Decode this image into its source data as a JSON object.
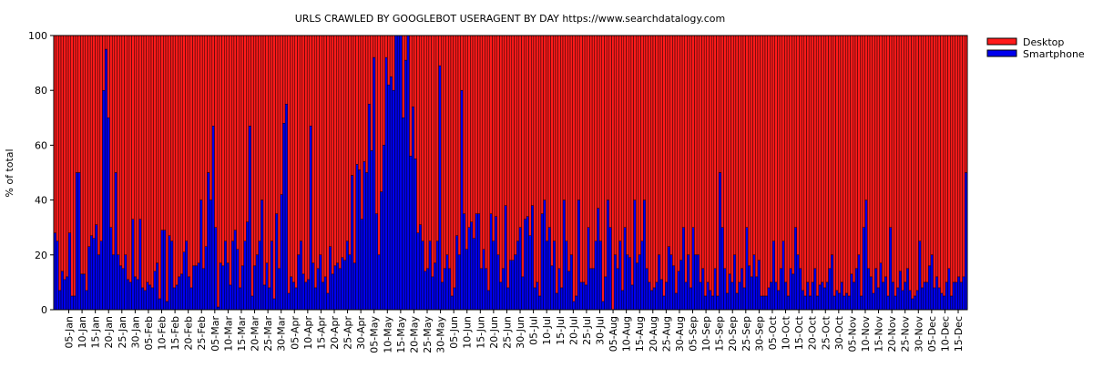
{
  "chart_data": {
    "type": "bar",
    "stacked": true,
    "title": "URLS CRAWLED BY GOOGLEBOT USERAGENT BY DAY https://www.searchdatalogy.com",
    "xlabel": "",
    "ylabel": "% of total",
    "ylim": [
      0,
      100
    ],
    "yticks": [
      0,
      20,
      40,
      60,
      80,
      100
    ],
    "grid": false,
    "legend_position": "top-right",
    "x_tick_labels": [
      "05-Jan",
      "10-Jan",
      "15-Jan",
      "20-Jan",
      "25-Jan",
      "30-Jan",
      "05-Feb",
      "10-Feb",
      "15-Feb",
      "20-Feb",
      "25-Feb",
      "05-Mar",
      "10-Mar",
      "15-Mar",
      "20-Mar",
      "25-Mar",
      "30-Mar",
      "05-Apr",
      "10-Apr",
      "15-Apr",
      "20-Apr",
      "25-Apr",
      "30-Apr",
      "05-May",
      "10-May",
      "15-May",
      "20-May",
      "25-May",
      "30-May",
      "05-Jun",
      "10-Jun",
      "15-Jun",
      "20-Jun",
      "25-Jun",
      "30-Jun",
      "05-Jul",
      "10-Jul",
      "15-Jul",
      "20-Jul",
      "25-Jul",
      "30-Jul",
      "05-Aug",
      "10-Aug",
      "15-Aug",
      "20-Aug",
      "25-Aug",
      "30-Aug",
      "05-Sep",
      "10-Sep",
      "15-Sep",
      "20-Sep",
      "25-Sep",
      "30-Sep",
      "05-Oct",
      "10-Oct",
      "15-Oct",
      "20-Oct",
      "25-Oct",
      "30-Oct",
      "05-Nov",
      "10-Nov",
      "15-Nov",
      "20-Nov",
      "25-Nov",
      "30-Nov",
      "05-Dec",
      "10-Dec",
      "15-Dec"
    ],
    "colors": {
      "Desktop": "#ff1a1a",
      "Smartphone": "#0000ee",
      "edge": "#000000"
    },
    "series": [
      {
        "name": "Desktop",
        "values": [
          72,
          75,
          93,
          86,
          89,
          88,
          72,
          95,
          95,
          50,
          50,
          87,
          87,
          93,
          77,
          73,
          74,
          69,
          80,
          75,
          20,
          5,
          30,
          70,
          80,
          50,
          80,
          84,
          85,
          80,
          89,
          90,
          67,
          88,
          89,
          67,
          92,
          93,
          90,
          91,
          92,
          86,
          83,
          96,
          71,
          71,
          97,
          73,
          75,
          92,
          91,
          88,
          87,
          79,
          75,
          88,
          92,
          84,
          84,
          83,
          60,
          85,
          77,
          50,
          60,
          33,
          70,
          99,
          83,
          84,
          75,
          83,
          91,
          75,
          71,
          78,
          92,
          84,
          75,
          68,
          33,
          95,
          84,
          80,
          75,
          60,
          91,
          83,
          92,
          75,
          96,
          65,
          85,
          58,
          32,
          25,
          94,
          88,
          90,
          92,
          80,
          75,
          87,
          90,
          89,
          33,
          83,
          92,
          85,
          80,
          90,
          88,
          94,
          77,
          87,
          84,
          83,
          85,
          81,
          82,
          75,
          80,
          51,
          83,
          47,
          49,
          67,
          46,
          50,
          25,
          42,
          8,
          65,
          80,
          57,
          40,
          8,
          18,
          15,
          20,
          0,
          0,
          0,
          30,
          9,
          0,
          44,
          26,
          45,
          72,
          69,
          75,
          86,
          85,
          75,
          88,
          83,
          75,
          11,
          90,
          85,
          80,
          85,
          95,
          92,
          73,
          80,
          20,
          65,
          78,
          70,
          68,
          74,
          65,
          65,
          85,
          78,
          85,
          93,
          65,
          75,
          66,
          80,
          90,
          85,
          62,
          92,
          82,
          82,
          80,
          75,
          70,
          88,
          67,
          66,
          73,
          62,
          92,
          90,
          95,
          65,
          60,
          75,
          70,
          84,
          75,
          94,
          85,
          92,
          60,
          75,
          86,
          80,
          97,
          95,
          60,
          90,
          90,
          91,
          70,
          85,
          85,
          75,
          63,
          75,
          97,
          88,
          60,
          70,
          100,
          80,
          85,
          75,
          93,
          70,
          80,
          81,
          91,
          60,
          83,
          80,
          75,
          60,
          85,
          90,
          93,
          92,
          90,
          80,
          89,
          95,
          90,
          77,
          80,
          84,
          94,
          86,
          82,
          70,
          90,
          80,
          92,
          70,
          80,
          80,
          90,
          85,
          95,
          90,
          93,
          95,
          85,
          95,
          50,
          70,
          85,
          94,
          87,
          90,
          80,
          94,
          90,
          85,
          92,
          70,
          84,
          88,
          80,
          88,
          82,
          95,
          95,
          95,
          92,
          90,
          75,
          90,
          93,
          85,
          75,
          90,
          95,
          85,
          87,
          70,
          80,
          85,
          93,
          95,
          90,
          95,
          90,
          85,
          95,
          91,
          90,
          92,
          90,
          85,
          80,
          95,
          93,
          94,
          90,
          95,
          94,
          95,
          87,
          90,
          85,
          80,
          95,
          70,
          60,
          85,
          88,
          94,
          85,
          92,
          83,
          90,
          88,
          95,
          70,
          90,
          95,
          92,
          86,
          93,
          90,
          85,
          93,
          96,
          95,
          93,
          75,
          92,
          90,
          90,
          84,
          80,
          92,
          88,
          92,
          94,
          95,
          90,
          85,
          95,
          90,
          90,
          88,
          90,
          88,
          50
        ]
      },
      {
        "name": "Smartphone",
        "values": [
          28,
          25,
          7,
          14,
          11,
          12,
          28,
          5,
          5,
          50,
          50,
          13,
          13,
          7,
          23,
          27,
          26,
          31,
          20,
          25,
          80,
          95,
          70,
          30,
          20,
          50,
          20,
          16,
          15,
          20,
          11,
          10,
          33,
          12,
          11,
          33,
          8,
          7,
          10,
          9,
          8,
          14,
          17,
          4,
          29,
          29,
          3,
          27,
          25,
          8,
          9,
          12,
          13,
          21,
          25,
          12,
          8,
          16,
          16,
          17,
          40,
          15,
          23,
          50,
          40,
          67,
          30,
          1,
          17,
          16,
          25,
          17,
          9,
          25,
          29,
          22,
          8,
          16,
          25,
          32,
          67,
          5,
          16,
          20,
          25,
          40,
          9,
          17,
          8,
          25,
          4,
          35,
          15,
          42,
          68,
          75,
          6,
          12,
          10,
          8,
          20,
          25,
          13,
          10,
          11,
          67,
          17,
          8,
          15,
          20,
          10,
          12,
          6,
          23,
          13,
          16,
          17,
          15,
          19,
          18,
          25,
          20,
          49,
          17,
          53,
          51,
          33,
          54,
          50,
          75,
          58,
          92,
          35,
          20,
          43,
          60,
          92,
          82,
          85,
          80,
          100,
          100,
          100,
          70,
          91,
          100,
          56,
          74,
          55,
          28,
          31,
          25,
          14,
          15,
          25,
          12,
          17,
          25,
          89,
          10,
          15,
          20,
          15,
          5,
          8,
          27,
          20,
          80,
          35,
          22,
          30,
          32,
          26,
          35,
          35,
          15,
          22,
          15,
          7,
          35,
          25,
          34,
          20,
          10,
          15,
          38,
          8,
          18,
          18,
          20,
          25,
          30,
          12,
          33,
          34,
          27,
          38,
          8,
          10,
          5,
          35,
          40,
          25,
          30,
          16,
          25,
          6,
          15,
          8,
          40,
          25,
          14,
          20,
          3,
          5,
          40,
          10,
          10,
          9,
          30,
          15,
          15,
          25,
          37,
          25,
          3,
          12,
          40,
          30,
          0,
          20,
          15,
          25,
          7,
          30,
          20,
          19,
          9,
          40,
          17,
          20,
          25,
          40,
          15,
          10,
          7,
          8,
          10,
          20,
          11,
          5,
          10,
          23,
          20,
          16,
          6,
          14,
          18,
          30,
          10,
          20,
          8,
          30,
          20,
          20,
          10,
          15,
          5,
          10,
          7,
          5,
          15,
          5,
          50,
          30,
          15,
          6,
          13,
          10,
          20,
          6,
          10,
          15,
          8,
          30,
          16,
          12,
          20,
          12,
          18,
          5,
          5,
          5,
          8,
          10,
          25,
          10,
          7,
          15,
          25,
          10,
          5,
          15,
          13,
          30,
          20,
          15,
          7,
          5,
          10,
          5,
          10,
          15,
          5,
          9,
          10,
          8,
          10,
          15,
          20,
          5,
          7,
          6,
          10,
          5,
          6,
          5,
          13,
          10,
          15,
          20,
          5,
          30,
          40,
          15,
          12,
          6,
          15,
          8,
          17,
          10,
          12,
          5,
          30,
          10,
          5,
          8,
          14,
          7,
          10,
          15,
          7,
          4,
          5,
          7,
          25,
          8,
          10,
          10,
          16,
          20,
          8,
          12,
          8,
          6,
          5,
          10,
          15,
          5,
          10,
          10,
          12,
          10,
          12,
          50
        ]
      }
    ]
  }
}
